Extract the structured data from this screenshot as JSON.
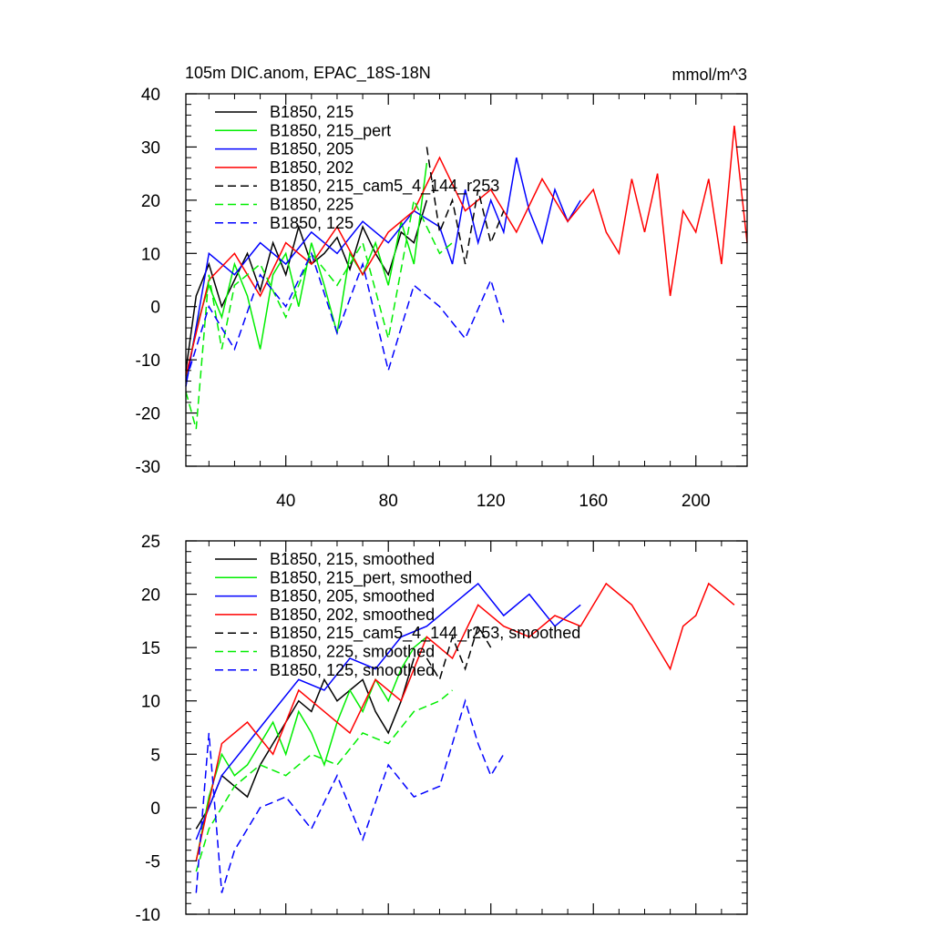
{
  "chart_data": [
    {
      "type": "line",
      "title": "105m DIC.anom, EPAC_18S-18N",
      "units_label": "mmol/m^3",
      "xlim": [
        1,
        220
      ],
      "ylim": [
        -30,
        40
      ],
      "x_ticks": [
        40,
        80,
        120,
        160,
        200
      ],
      "y_ticks": [
        -30,
        -20,
        -10,
        0,
        10,
        20,
        30,
        40
      ],
      "grid": false,
      "legend_position": "top-left",
      "series": [
        {
          "name": "B1850, 215",
          "color": "#000000",
          "dash": "solid",
          "x": [
            1,
            5,
            10,
            15,
            20,
            25,
            30,
            35,
            40,
            45,
            50,
            55,
            60,
            65,
            70,
            75,
            80,
            85,
            90,
            95
          ],
          "y": [
            -12,
            2,
            8,
            0,
            5,
            10,
            3,
            12,
            6,
            15,
            8,
            10,
            13,
            7,
            15,
            10,
            6,
            14,
            12,
            20
          ]
        },
        {
          "name": "B1850, 215_pert",
          "color": "#00ee00",
          "dash": "solid",
          "x": [
            1,
            5,
            10,
            15,
            20,
            25,
            30,
            35,
            40,
            45,
            50,
            55,
            60,
            65,
            70,
            75,
            80,
            85,
            90,
            95
          ],
          "y": [
            -14,
            -4,
            4,
            -2,
            8,
            2,
            -8,
            6,
            10,
            0,
            12,
            4,
            -5,
            10,
            6,
            12,
            4,
            16,
            8,
            27
          ]
        },
        {
          "name": "B1850, 205",
          "color": "#0000ff",
          "dash": "solid",
          "x": [
            1,
            10,
            20,
            30,
            40,
            50,
            60,
            70,
            80,
            90,
            100,
            105,
            110,
            115,
            120,
            125,
            130,
            135,
            140,
            145,
            150,
            155
          ],
          "y": [
            -15,
            10,
            6,
            12,
            8,
            14,
            10,
            16,
            12,
            18,
            15,
            8,
            22,
            12,
            20,
            14,
            28,
            18,
            12,
            22,
            16,
            20
          ]
        },
        {
          "name": "B1850, 202",
          "color": "#ff0000",
          "dash": "solid",
          "x": [
            1,
            10,
            20,
            30,
            40,
            50,
            60,
            70,
            80,
            90,
            100,
            110,
            120,
            130,
            140,
            150,
            160,
            165,
            170,
            175,
            180,
            185,
            190,
            195,
            200,
            205,
            210,
            215,
            220
          ],
          "y": [
            -13,
            5,
            10,
            2,
            12,
            8,
            15,
            6,
            14,
            18,
            28,
            18,
            22,
            14,
            24,
            16,
            22,
            14,
            10,
            24,
            14,
            25,
            2,
            18,
            14,
            24,
            8,
            34,
            12
          ]
        },
        {
          "name": "B1850, 215_cam5_4_144_r253",
          "color": "#000000",
          "dash": "dashed",
          "x": [
            95,
            100,
            105,
            110,
            115,
            120,
            125
          ],
          "y": [
            30,
            14,
            20,
            8,
            22,
            12,
            18
          ]
        },
        {
          "name": "B1850, 225",
          "color": "#00ee00",
          "dash": "dashed",
          "x": [
            1,
            5,
            10,
            15,
            20,
            30,
            40,
            50,
            60,
            70,
            80,
            90,
            100,
            105
          ],
          "y": [
            -16,
            -23,
            6,
            -8,
            4,
            8,
            -2,
            10,
            4,
            12,
            -6,
            20,
            10,
            12
          ]
        },
        {
          "name": "B1850, 125",
          "color": "#0000ff",
          "dash": "dashed",
          "x": [
            1,
            10,
            20,
            30,
            40,
            50,
            60,
            70,
            80,
            90,
            100,
            110,
            120,
            125
          ],
          "y": [
            -14,
            0,
            -8,
            6,
            0,
            10,
            -5,
            8,
            -12,
            4,
            0,
            -6,
            5,
            -3
          ]
        }
      ]
    },
    {
      "type": "line",
      "title": "",
      "xlim": [
        1,
        220
      ],
      "ylim": [
        -10,
        25
      ],
      "x_ticks": [
        40,
        80,
        120,
        160,
        200
      ],
      "y_ticks": [
        -10,
        -5,
        0,
        5,
        10,
        15,
        20,
        25
      ],
      "grid": false,
      "legend_position": "top-left",
      "series": [
        {
          "name": "B1850, 215, smoothed",
          "color": "#000000",
          "dash": "solid",
          "x": [
            5,
            10,
            15,
            20,
            25,
            30,
            35,
            40,
            45,
            50,
            55,
            60,
            65,
            70,
            75,
            80,
            85,
            90
          ],
          "y": [
            -2,
            0,
            3,
            2,
            1,
            4,
            6,
            8,
            10,
            9,
            12,
            10,
            11,
            12,
            9,
            7,
            10,
            14
          ]
        },
        {
          "name": "B1850, 215_pert, smoothed",
          "color": "#00ee00",
          "dash": "solid",
          "x": [
            5,
            10,
            15,
            20,
            25,
            30,
            35,
            40,
            45,
            50,
            55,
            60,
            65,
            70,
            75,
            80,
            85,
            90,
            95
          ],
          "y": [
            -5,
            1,
            5,
            3,
            4,
            6,
            8,
            5,
            9,
            7,
            4,
            8,
            11,
            9,
            12,
            10,
            13,
            15,
            16
          ]
        },
        {
          "name": "B1850, 205, smoothed",
          "color": "#0000ff",
          "dash": "solid",
          "x": [
            5,
            15,
            25,
            35,
            45,
            55,
            65,
            75,
            85,
            95,
            105,
            115,
            125,
            135,
            145,
            155
          ],
          "y": [
            -3,
            3,
            6,
            9,
            12,
            11,
            14,
            13,
            16,
            17,
            19,
            21,
            18,
            20,
            17,
            19
          ]
        },
        {
          "name": "B1850, 202, smoothed",
          "color": "#ff0000",
          "dash": "solid",
          "x": [
            5,
            15,
            25,
            35,
            45,
            55,
            65,
            75,
            85,
            95,
            105,
            115,
            125,
            135,
            145,
            155,
            165,
            175,
            185,
            190,
            195,
            200,
            205,
            210,
            215
          ],
          "y": [
            -5,
            6,
            8,
            5,
            11,
            9,
            7,
            12,
            10,
            16,
            14,
            19,
            17,
            16,
            18,
            17,
            21,
            19,
            15,
            13,
            17,
            18,
            21,
            20,
            19
          ]
        },
        {
          "name": "B1850, 215_cam5_4_144_r253, smoothed",
          "color": "#000000",
          "dash": "dashed",
          "x": [
            95,
            100,
            105,
            110,
            115,
            120
          ],
          "y": [
            14,
            12,
            16,
            13,
            17,
            15
          ]
        },
        {
          "name": "B1850, 225, smoothed",
          "color": "#00ee00",
          "dash": "dashed",
          "x": [
            5,
            10,
            20,
            30,
            40,
            50,
            60,
            70,
            80,
            90,
            100,
            105
          ],
          "y": [
            -6,
            -2,
            2,
            4,
            3,
            5,
            4,
            7,
            6,
            9,
            10,
            11
          ]
        },
        {
          "name": "B1850, 125, smoothed",
          "color": "#0000ff",
          "dash": "dashed",
          "x": [
            5,
            10,
            15,
            20,
            30,
            40,
            50,
            60,
            70,
            80,
            90,
            100,
            110,
            115,
            120,
            125
          ],
          "y": [
            -8,
            7,
            -8,
            -4,
            0,
            1,
            -2,
            3,
            -3,
            4,
            1,
            2,
            10,
            6,
            3,
            5
          ]
        }
      ]
    }
  ]
}
